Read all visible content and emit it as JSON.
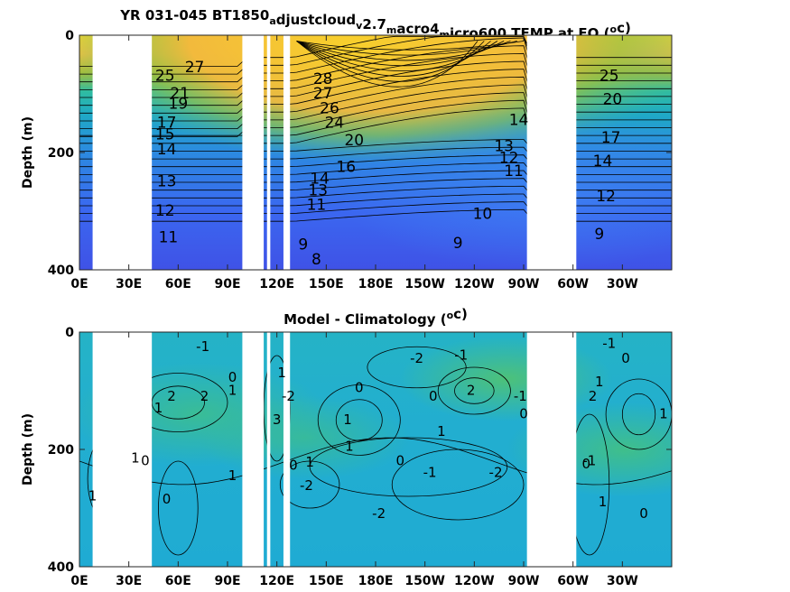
{
  "chart_data": [
    {
      "type": "heatmap",
      "title_prefix": "YR 031-045 BT1850",
      "title_parts": [
        {
          "t": "a",
          "sub": true
        },
        {
          "t": "djustcloud",
          "sub": false
        },
        {
          "t": "v",
          "sub": true
        },
        {
          "t": "2.7",
          "sub": false
        },
        {
          "t": "m",
          "sub": true
        },
        {
          "t": "acro4",
          "sub": false
        },
        {
          "t": "m",
          "sub": true
        },
        {
          "t": "icro600 TEMP at EQ (",
          "sub": false
        },
        {
          "t": "o",
          "sup": true
        },
        {
          "t": "c)",
          "sub": false
        }
      ],
      "xlabel": "",
      "ylabel": "Depth (m)",
      "x_ticks": [
        "0E",
        "30E",
        "60E",
        "90E",
        "120E",
        "150E",
        "180E",
        "150W",
        "120W",
        "90W",
        "60W",
        "30W"
      ],
      "x_tick_lon": [
        0,
        30,
        60,
        90,
        120,
        150,
        180,
        210,
        240,
        270,
        300,
        330
      ],
      "y_ticks": [
        "0",
        "200",
        "400"
      ],
      "y_tick_vals": [
        0,
        200,
        400
      ],
      "xlim": [
        0,
        360
      ],
      "ylim": [
        0,
        400
      ],
      "colormap": "parula",
      "clim": [
        6,
        30
      ],
      "masked_lon_ranges": [
        [
          8,
          44
        ],
        [
          99,
          112
        ],
        [
          114,
          116
        ],
        [
          124,
          128
        ],
        [
          272,
          302
        ]
      ],
      "contour_labels": [
        {
          "text": "27",
          "lon": 70,
          "depth": 55
        },
        {
          "text": "25",
          "lon": 52,
          "depth": 70
        },
        {
          "text": "21",
          "lon": 61,
          "depth": 100
        },
        {
          "text": "19",
          "lon": 60,
          "depth": 118
        },
        {
          "text": "17",
          "lon": 53,
          "depth": 150
        },
        {
          "text": "15",
          "lon": 52,
          "depth": 170
        },
        {
          "text": "14",
          "lon": 53,
          "depth": 195
        },
        {
          "text": "13",
          "lon": 53,
          "depth": 250
        },
        {
          "text": "12",
          "lon": 52,
          "depth": 300
        },
        {
          "text": "11",
          "lon": 54,
          "depth": 345
        },
        {
          "text": "28",
          "lon": 148,
          "depth": 75
        },
        {
          "text": "27",
          "lon": 148,
          "depth": 100
        },
        {
          "text": "26",
          "lon": 152,
          "depth": 125
        },
        {
          "text": "24",
          "lon": 155,
          "depth": 150
        },
        {
          "text": "20",
          "lon": 167,
          "depth": 180
        },
        {
          "text": "16",
          "lon": 162,
          "depth": 225
        },
        {
          "text": "14",
          "lon": 146,
          "depth": 245
        },
        {
          "text": "13",
          "lon": 145,
          "depth": 265
        },
        {
          "text": "11",
          "lon": 144,
          "depth": 290
        },
        {
          "text": "9",
          "lon": 136,
          "depth": 358
        },
        {
          "text": "8",
          "lon": 144,
          "depth": 383
        },
        {
          "text": "14",
          "lon": 267,
          "depth": 145
        },
        {
          "text": "13",
          "lon": 258,
          "depth": 190
        },
        {
          "text": "12",
          "lon": 261,
          "depth": 210
        },
        {
          "text": "11",
          "lon": 264,
          "depth": 232
        },
        {
          "text": "10",
          "lon": 245,
          "depth": 305
        },
        {
          "text": "9",
          "lon": 230,
          "depth": 355
        },
        {
          "text": "25",
          "lon": 322,
          "depth": 70
        },
        {
          "text": "20",
          "lon": 324,
          "depth": 110
        },
        {
          "text": "17",
          "lon": 323,
          "depth": 175
        },
        {
          "text": "14",
          "lon": 318,
          "depth": 215
        },
        {
          "text": "12",
          "lon": 320,
          "depth": 275
        },
        {
          "text": "9",
          "lon": 316,
          "depth": 340
        }
      ]
    },
    {
      "type": "heatmap",
      "title_prefix": "Model - Climatology (",
      "title_parts": [
        {
          "t": "o",
          "sup": true
        },
        {
          "t": "c)",
          "sub": false
        }
      ],
      "xlabel": "",
      "ylabel": "Depth (m)",
      "x_ticks": [
        "0E",
        "30E",
        "60E",
        "90E",
        "120E",
        "150E",
        "180E",
        "150W",
        "120W",
        "90W",
        "60W",
        "30W"
      ],
      "x_tick_lon": [
        0,
        30,
        60,
        90,
        120,
        150,
        180,
        210,
        240,
        270,
        300,
        330
      ],
      "y_ticks": [
        "0",
        "200",
        "400"
      ],
      "y_tick_vals": [
        0,
        200,
        400
      ],
      "xlim": [
        0,
        360
      ],
      "ylim": [
        0,
        400
      ],
      "colormap": "parula",
      "clim": [
        -6,
        6
      ],
      "masked_lon_ranges": [
        [
          8,
          44
        ],
        [
          99,
          112
        ],
        [
          114,
          116
        ],
        [
          124,
          128
        ],
        [
          272,
          302
        ]
      ],
      "contour_labels": [
        {
          "text": "-1",
          "lon": 75,
          "depth": 25
        },
        {
          "text": "0",
          "lon": 93,
          "depth": 78
        },
        {
          "text": "1",
          "lon": 93,
          "depth": 100
        },
        {
          "text": "2",
          "lon": 56,
          "depth": 110
        },
        {
          "text": "2",
          "lon": 76,
          "depth": 110
        },
        {
          "text": "1",
          "lon": 48,
          "depth": 130
        },
        {
          "text": "0",
          "lon": 40,
          "depth": 220
        },
        {
          "text": "1",
          "lon": 34,
          "depth": 215
        },
        {
          "text": "1",
          "lon": 93,
          "depth": 245
        },
        {
          "text": "0",
          "lon": 53,
          "depth": 285
        },
        {
          "text": "1",
          "lon": 8,
          "depth": 280
        },
        {
          "text": "1",
          "lon": 123,
          "depth": 70
        },
        {
          "text": "-2",
          "lon": 127,
          "depth": 110
        },
        {
          "text": "3",
          "lon": 120,
          "depth": 150
        },
        {
          "text": "0",
          "lon": 130,
          "depth": 228
        },
        {
          "text": "1",
          "lon": 140,
          "depth": 222
        },
        {
          "text": "-2",
          "lon": 138,
          "depth": 262
        },
        {
          "text": "0",
          "lon": 170,
          "depth": 95
        },
        {
          "text": "1",
          "lon": 163,
          "depth": 150
        },
        {
          "text": "1",
          "lon": 164,
          "depth": 195
        },
        {
          "text": "-2",
          "lon": 205,
          "depth": 45
        },
        {
          "text": "0",
          "lon": 215,
          "depth": 110
        },
        {
          "text": "-1",
          "lon": 232,
          "depth": 40
        },
        {
          "text": "1",
          "lon": 220,
          "depth": 170
        },
        {
          "text": "0",
          "lon": 195,
          "depth": 220
        },
        {
          "text": "-1",
          "lon": 213,
          "depth": 240
        },
        {
          "text": "2",
          "lon": 238,
          "depth": 100
        },
        {
          "text": "-2",
          "lon": 182,
          "depth": 310
        },
        {
          "text": "-2",
          "lon": 253,
          "depth": 240
        },
        {
          "text": "-1",
          "lon": 268,
          "depth": 110
        },
        {
          "text": "0",
          "lon": 270,
          "depth": 140
        },
        {
          "text": "-1",
          "lon": 322,
          "depth": 20
        },
        {
          "text": "0",
          "lon": 332,
          "depth": 45
        },
        {
          "text": "1",
          "lon": 316,
          "depth": 85
        },
        {
          "text": "2",
          "lon": 312,
          "depth": 110
        },
        {
          "text": "1",
          "lon": 355,
          "depth": 140
        },
        {
          "text": "0",
          "lon": 308,
          "depth": 225
        },
        {
          "text": "-1",
          "lon": 310,
          "depth": 220
        },
        {
          "text": "1",
          "lon": 318,
          "depth": 290
        },
        {
          "text": "0",
          "lon": 343,
          "depth": 310
        }
      ]
    }
  ]
}
